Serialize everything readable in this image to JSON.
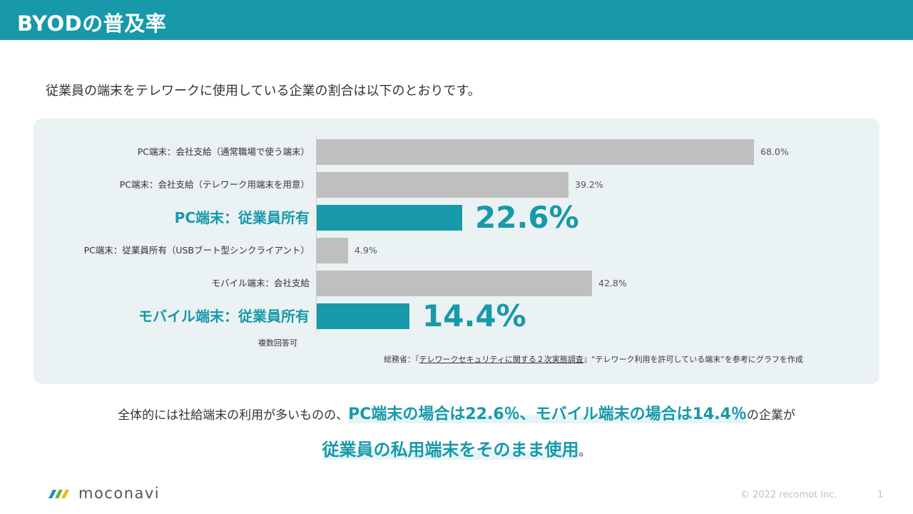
{
  "header": {
    "title": "BYODの普及率"
  },
  "intro": "従業員の端末をテレワークに使用している企業の割合は以下のとおりです。",
  "chart_data": {
    "type": "bar",
    "orientation": "horizontal",
    "categories": [
      "PC端末：会社支給（通常職場で使う端末）",
      "PC端末：会社支給（テレワーク用端末を用意）",
      "PC端末：従業員所有",
      "PC端末：従業員所有（USBブート型シンクライアント）",
      "モバイル端末：会社支給",
      "モバイル端末：従業員所有"
    ],
    "values": [
      68.0,
      39.2,
      22.6,
      4.9,
      42.8,
      14.4
    ],
    "value_labels": [
      "68.0%",
      "39.2%",
      "22.6%",
      "4.9%",
      "42.8%",
      "14.4%"
    ],
    "highlighted": [
      false,
      false,
      true,
      false,
      false,
      true
    ],
    "xlim": [
      0,
      68.0
    ],
    "grid": false,
    "colors": {
      "default": "#bfbfbf",
      "highlight": "#1799a9"
    }
  },
  "notes": {
    "multi_answer": "複数回答可",
    "source_prefix": "総務省：『",
    "source_link": "テレワークセキュリティに関する２次実態調査",
    "source_suffix": "』“テレワーク利用を許可している端末”を参考にグラフを作成"
  },
  "summary": {
    "line1_pre": "全体的には社給端末の利用が多いものの、",
    "line1_emph": "PC端末の場合は22.6％、モバイル端末の場合は14.4％",
    "line1_post": "の企業が",
    "line2_emph": "従業員の私用端末をそのまま使用",
    "line2_post": "。"
  },
  "footer": {
    "logo_text": "moconavi",
    "copyright": "© 2022 recomot Inc.",
    "page": "1"
  },
  "colors": {
    "accent": "#1799a9",
    "panel": "#ebf2f4",
    "bar_gray": "#bfbfbf"
  }
}
